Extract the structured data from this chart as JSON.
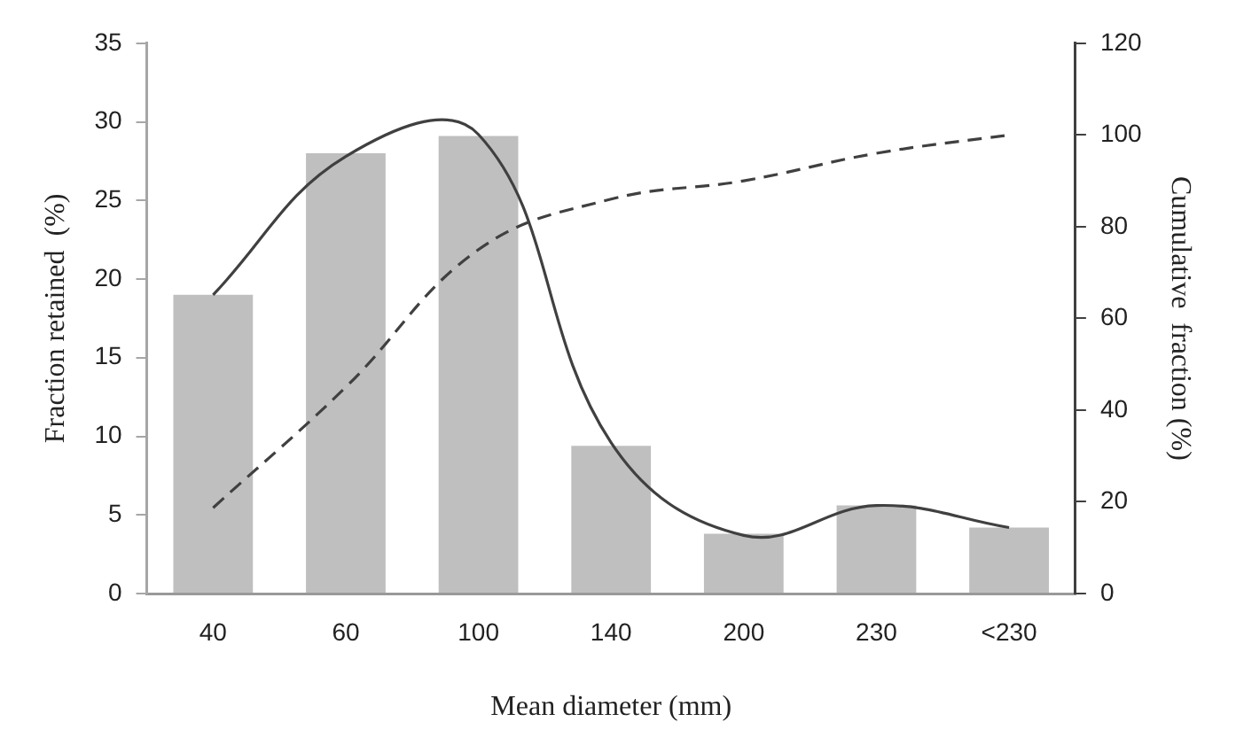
{
  "chart_data": {
    "type": "bar",
    "xlabel": "Mean diameter (mm)",
    "ylabel": "Fraction retained  (%)",
    "y2label": "Cumulative  fraction (%)",
    "categories": [
      "40",
      "60",
      "100",
      "140",
      "200",
      "230",
      "<230"
    ],
    "series": [
      {
        "color": "#bfbfbf",
        "values": [
          19.0,
          28.0,
          29.1,
          9.4,
          3.8,
          5.6,
          4.2
        ]
      },
      {
        "type": "line",
        "color": "#404040",
        "line_style": "solid",
        "values": [
          19.0,
          27.8,
          29.2,
          9.6,
          3.7,
          5.6,
          4.2
        ]
      },
      {
        "type": "line",
        "color": "#404040",
        "line_style": "dashed",
        "axis": "y2",
        "values": [
          18.7,
          45,
          75,
          86,
          90,
          96,
          100
        ]
      }
    ],
    "ylim": [
      0,
      35
    ],
    "yticks": [
      0,
      5,
      10,
      15,
      20,
      25,
      30,
      35
    ],
    "y2lim": [
      0,
      120
    ],
    "y2ticks": [
      0,
      20,
      40,
      60,
      80,
      100,
      120
    ],
    "grid": false,
    "legend": false,
    "marker": "none"
  }
}
